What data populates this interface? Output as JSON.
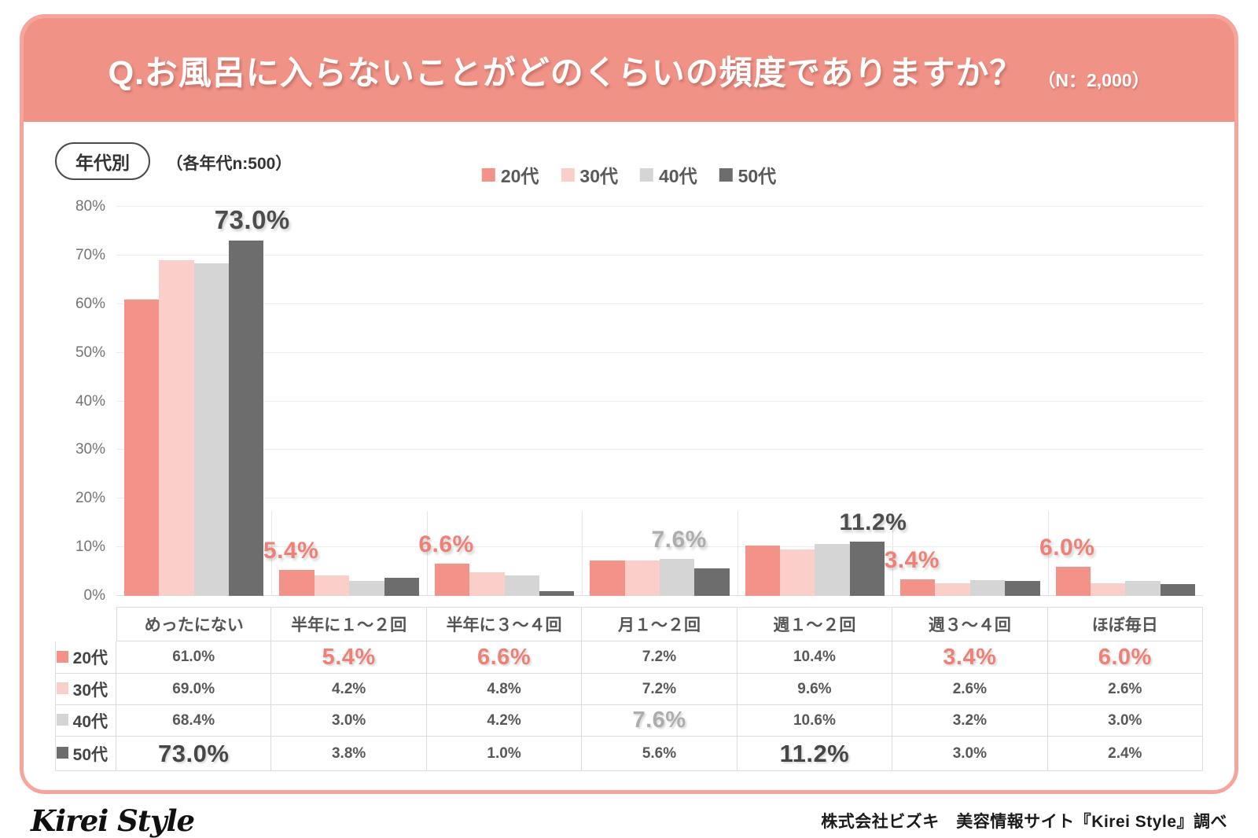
{
  "header": {
    "title": "Q.お風呂に入らないことがどのくらいの頻度でありますか？",
    "sample": "（N：2,000）"
  },
  "badge": {
    "label": "年代別",
    "note": "（各年代n:500）"
  },
  "legend": [
    {
      "label": "20代",
      "color": "#F29289"
    },
    {
      "label": "30代",
      "color": "#FACFC9"
    },
    {
      "label": "40代",
      "color": "#D6D5D5"
    },
    {
      "label": "50代",
      "color": "#6E6D6D"
    }
  ],
  "colors": {
    "header_bg": "#F19287",
    "card_border": "#F5A59C",
    "anno_salmon": "#EE8076",
    "anno_gray": "#ADADAD",
    "anno_dark": "#4E4D4D",
    "em_salmon": "#EE8076",
    "em_gray": "#ADADAD",
    "em_dark": "#474646"
  },
  "chart_data": {
    "type": "bar",
    "title": "Q.お風呂に入らないことがどのくらいの頻度でありますか？",
    "categories": [
      "めったにない",
      "半年に１〜２回",
      "半年に３〜４回",
      "月１〜２回",
      "週１〜２回",
      "週３〜４回",
      "ほぼ毎日"
    ],
    "series": [
      {
        "name": "20代",
        "color": "#F29289",
        "values": [
          61.0,
          5.4,
          6.6,
          7.2,
          10.4,
          3.4,
          6.0
        ]
      },
      {
        "name": "30代",
        "color": "#FACFC9",
        "values": [
          69.0,
          4.2,
          4.8,
          7.2,
          9.6,
          2.6,
          2.6
        ]
      },
      {
        "name": "40代",
        "color": "#D6D5D5",
        "values": [
          68.4,
          3.0,
          4.2,
          7.6,
          10.6,
          3.2,
          3.0
        ]
      },
      {
        "name": "50代",
        "color": "#6E6D6D",
        "values": [
          73.0,
          3.8,
          1.0,
          5.6,
          11.2,
          3.0,
          2.4
        ]
      }
    ],
    "ylim": [
      0,
      80
    ],
    "yticks": [
      "80%",
      "70%",
      "60%",
      "50%",
      "40%",
      "30%",
      "20%",
      "10%",
      "0%"
    ],
    "grid": true,
    "legend_position": "top-center",
    "annotations": [
      {
        "group": 0,
        "bar": 3,
        "text": "73.0%",
        "tone": "dark",
        "size": "xl"
      },
      {
        "group": 1,
        "bar": 0,
        "text": "5.4%",
        "tone": "salmon"
      },
      {
        "group": 2,
        "bar": 0,
        "text": "6.6%",
        "tone": "salmon"
      },
      {
        "group": 3,
        "bar": 2,
        "text": "7.6%",
        "tone": "gray"
      },
      {
        "group": 4,
        "bar": 3,
        "text": "11.2%",
        "tone": "dark"
      },
      {
        "group": 5,
        "bar": 0,
        "text": "3.4%",
        "tone": "salmon"
      },
      {
        "group": 6,
        "bar": 0,
        "text": "6.0%",
        "tone": "salmon"
      }
    ]
  },
  "table": {
    "col_headers": [
      "めったにない",
      "半年に１〜２回",
      "半年に３〜４回",
      "月１〜２回",
      "週１〜２回",
      "週３〜４回",
      "ほぼ毎日"
    ],
    "rows": [
      {
        "label": "20代",
        "chip": "#F29289",
        "values": [
          "61.0%",
          "5.4%",
          "6.6%",
          "7.2%",
          "10.4%",
          "3.4%",
          "6.0%"
        ],
        "emphasis": [
          null,
          "salmon",
          "salmon",
          null,
          null,
          "salmon",
          "salmon"
        ]
      },
      {
        "label": "30代",
        "chip": "#FACFC9",
        "values": [
          "69.0%",
          "4.2%",
          "4.8%",
          "7.2%",
          "9.6%",
          "2.6%",
          "2.6%"
        ],
        "emphasis": [
          null,
          null,
          null,
          null,
          null,
          null,
          null
        ]
      },
      {
        "label": "40代",
        "chip": "#D6D5D5",
        "values": [
          "68.4%",
          "3.0%",
          "4.2%",
          "7.6%",
          "10.6%",
          "3.2%",
          "3.0%"
        ],
        "emphasis": [
          null,
          null,
          null,
          "gray",
          null,
          null,
          null
        ]
      },
      {
        "label": "50代",
        "chip": "#6E6D6D",
        "values": [
          "73.0%",
          "3.8%",
          "1.0%",
          "5.6%",
          "11.2%",
          "3.0%",
          "2.4%"
        ],
        "emphasis": [
          "dark",
          null,
          null,
          null,
          "dark",
          null,
          null
        ]
      }
    ]
  },
  "footer": {
    "logo": "Kirei Style",
    "credit": "株式会社ビズキ　美容情報サイト『Kirei Style』調べ"
  }
}
